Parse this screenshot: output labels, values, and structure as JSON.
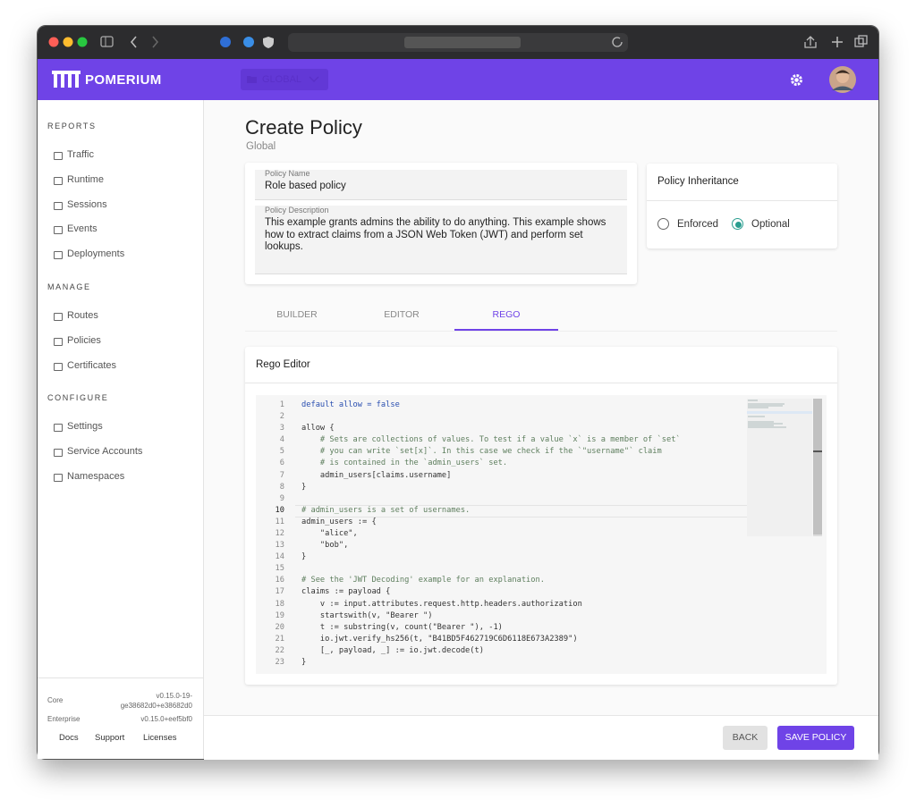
{
  "header": {
    "brand": "POMERIUM",
    "namespace": "GLOBAL"
  },
  "sidebar": {
    "sections": [
      {
        "title": "REPORTS",
        "items": [
          "Traffic",
          "Runtime",
          "Sessions",
          "Events",
          "Deployments"
        ]
      },
      {
        "title": "MANAGE",
        "items": [
          "Routes",
          "Policies",
          "Certificates"
        ]
      },
      {
        "title": "CONFIGURE",
        "items": [
          "Settings",
          "Service Accounts",
          "Namespaces"
        ]
      }
    ],
    "footer": {
      "versions": [
        {
          "label": "Core",
          "value": "v0.15.0-19-ge38682d0+e38682d0"
        },
        {
          "label": "Enterprise",
          "value": "v0.15.0+eef5bf0"
        }
      ],
      "links": [
        "Docs",
        "Support",
        "Licenses"
      ]
    }
  },
  "page": {
    "title": "Create Policy",
    "subtitle": "Global"
  },
  "form": {
    "name_label": "Policy Name",
    "name": "Role based policy",
    "description_label": "Policy Description",
    "description": "This example grants admins the ability to do anything. This example shows how to extract claims from a JSON Web Token (JWT) and perform set lookups."
  },
  "inheritance": {
    "title": "Policy Inheritance",
    "options": [
      {
        "label": "Enforced",
        "checked": false
      },
      {
        "label": "Optional",
        "checked": true
      }
    ]
  },
  "tabs": [
    {
      "label": "BUILDER",
      "active": false
    },
    {
      "label": "EDITOR",
      "active": false
    },
    {
      "label": "REGO",
      "active": true
    }
  ],
  "editor": {
    "title": "Rego Editor",
    "lines": [
      {
        "number": 1,
        "text": "default allow = false"
      },
      {
        "number": 2
      },
      {
        "number": 3,
        "text": "allow {"
      },
      {
        "number": 4,
        "text": "    # Sets are collections of values. To test if a value `x` is a member of `set`"
      },
      {
        "number": 5,
        "text": "    # you can write `set[x]`. In this case we check if the `\"username\"` claim"
      },
      {
        "number": 6,
        "text": "    # is contained in the `admin_users` set."
      },
      {
        "number": 7,
        "text": "    admin_users[claims.username]"
      },
      {
        "number": 8,
        "text": "}"
      },
      {
        "number": 9
      },
      {
        "number": 10,
        "text": "# admin_users is a set of usernames."
      },
      {
        "number": 11,
        "text": "admin_users := {"
      },
      {
        "number": 12,
        "text": "    \"alice\","
      },
      {
        "number": 13,
        "text": "    \"bob\","
      },
      {
        "number": 14,
        "text": "}"
      },
      {
        "number": 15
      },
      {
        "number": 16,
        "text": "# See the 'JWT Decoding' example for an explanation."
      },
      {
        "number": 17,
        "text": "claims := payload {"
      },
      {
        "number": 18,
        "text": "    v := input.attributes.request.http.headers.authorization"
      },
      {
        "number": 19,
        "text": "    startswith(v, \"Bearer \")"
      },
      {
        "number": 20,
        "text": "    t := substring(v, count(\"Bearer \"), -1)"
      },
      {
        "number": 21,
        "text": "    io.jwt.verify_hs256(t, \"B41BD5F462719C6D6118E673A2389\")"
      },
      {
        "number": 22,
        "text": "    [_, payload, _] := io.jwt.decode(t)"
      },
      {
        "number": 23,
        "text": "}"
      }
    ]
  },
  "actions": [
    "BACK",
    "SAVE POLICY"
  ]
}
